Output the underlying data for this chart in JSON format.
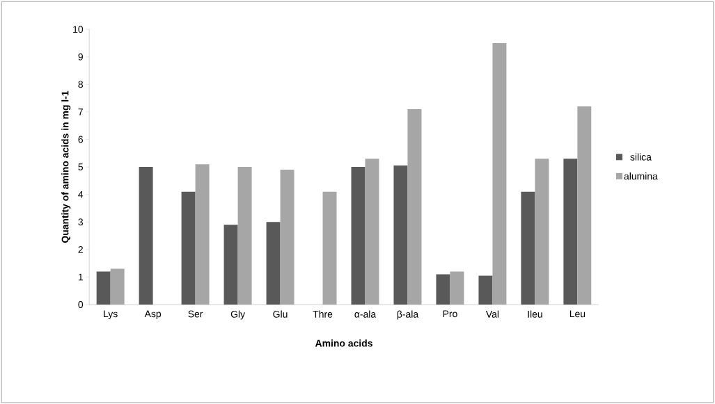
{
  "chart_data": {
    "type": "bar",
    "xlabel": "Amino acids",
    "ylabel": "Quantity of amino acids  in mg l-1",
    "categories": [
      "Lys",
      "Asp",
      "Ser",
      "Gly",
      "Glu",
      "Thre",
      "α-ala",
      "β-ala",
      "Pro",
      "Val",
      "Ileu",
      "Leu"
    ],
    "series": [
      {
        "name": "silica",
        "color": "#595959",
        "values": [
          1.2,
          5.0,
          4.1,
          2.9,
          3.0,
          null,
          5.0,
          5.05,
          1.1,
          1.05,
          4.1,
          5.3
        ]
      },
      {
        "name": "alumina",
        "color": "#a6a6a6",
        "values": [
          1.3,
          null,
          5.1,
          5.0,
          4.9,
          4.1,
          5.3,
          7.1,
          1.2,
          9.5,
          5.3,
          7.2
        ]
      }
    ],
    "ylim": [
      0,
      10
    ],
    "yticks": [
      0,
      1,
      2,
      3,
      4,
      5,
      6,
      7,
      8,
      9,
      10
    ],
    "grid": false,
    "legend": "right"
  }
}
